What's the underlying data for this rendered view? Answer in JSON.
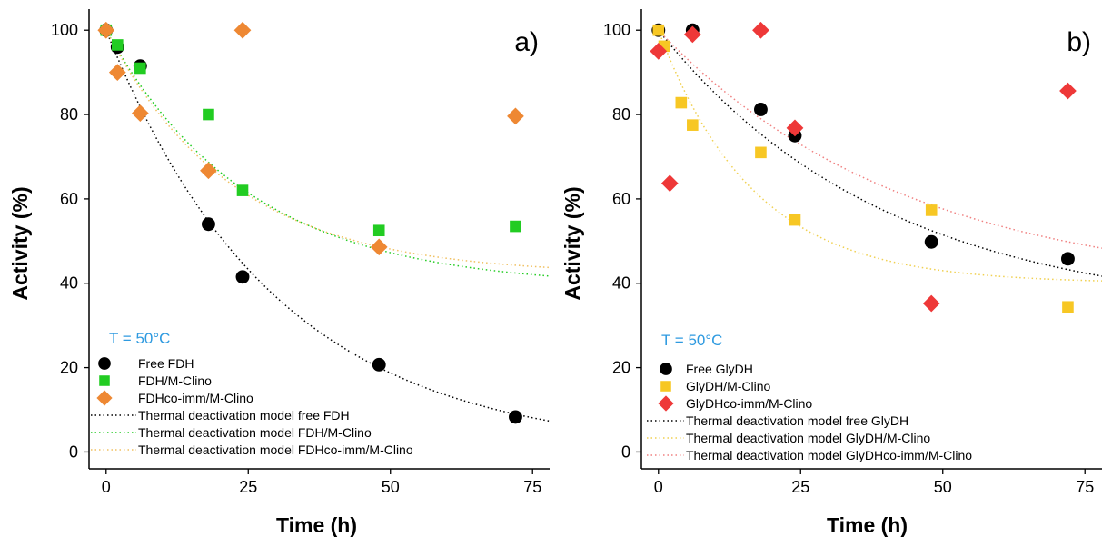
{
  "chart_data": [
    {
      "type": "scatter",
      "panel_label": "a)",
      "temperature_label": "T = 50°C",
      "xlabel": "Time (h)",
      "ylabel": "Activity (%)",
      "xlim": [
        -3,
        78
      ],
      "ylim": [
        -4,
        105
      ],
      "xticks": [
        0,
        25,
        50,
        75
      ],
      "yticks": [
        0,
        20,
        40,
        60,
        80,
        100
      ],
      "xtick_labels": [
        "0",
        "25",
        "50",
        "75"
      ],
      "ytick_labels": [
        "0",
        "20",
        "40",
        "60",
        "80",
        "100"
      ],
      "legend_position": "bottom-left",
      "series": [
        {
          "name": "Free FDH",
          "marker": "circle",
          "color": "#000000",
          "x": [
            0,
            2,
            6,
            18,
            24,
            48,
            72
          ],
          "y": [
            100,
            96,
            91.5,
            54,
            41.5,
            20.7,
            8.3
          ]
        },
        {
          "name": "FDH/M-Clino",
          "marker": "square",
          "color": "#22cc22",
          "x": [
            0,
            2,
            6,
            18,
            24,
            48,
            72
          ],
          "y": [
            100,
            96.5,
            91,
            80,
            62,
            52.5,
            53.5
          ]
        },
        {
          "name": "FDHco-imm/M-Clino",
          "marker": "diamond",
          "color": "#ee8833",
          "x": [
            0,
            2,
            6,
            18,
            24,
            48,
            72
          ],
          "y": [
            100,
            90,
            80.3,
            66.7,
            100,
            48.6,
            79.6
          ]
        }
      ],
      "models": [
        {
          "name": "Thermal deactivation model free FDH",
          "color": "#000000",
          "a": 100,
          "k": 0.0335,
          "c": 0
        },
        {
          "name": "Thermal deactivation model FDH/M-Clino",
          "color": "#22cc22",
          "a": 61,
          "k": 0.04,
          "c": 39
        },
        {
          "name": "Thermal deactivation model FDHco-imm/M-Clino",
          "color": "#f0c060",
          "a": 58,
          "k": 0.045,
          "c": 42
        }
      ]
    },
    {
      "type": "scatter",
      "panel_label": "b)",
      "temperature_label": "T = 50°C",
      "xlabel": "Time (h)",
      "ylabel": "Activity (%)",
      "xlim": [
        -3,
        78
      ],
      "ylim": [
        -4,
        105
      ],
      "xticks": [
        0,
        25,
        50,
        75
      ],
      "yticks": [
        0,
        20,
        40,
        60,
        80,
        100
      ],
      "xtick_labels": [
        "0",
        "25",
        "50",
        "75"
      ],
      "ytick_labels": [
        "0",
        "20",
        "40",
        "60",
        "80",
        "100"
      ],
      "legend_position": "bottom-left",
      "series": [
        {
          "name": "Free GlyDH",
          "marker": "circle",
          "color": "#000000",
          "x": [
            0,
            6,
            18,
            24,
            48,
            72
          ],
          "y": [
            100,
            100,
            81.2,
            75,
            49.8,
            45.8
          ]
        },
        {
          "name": "GlyDH/M-Clino",
          "marker": "square",
          "color": "#f7c724",
          "x": [
            0,
            1,
            4,
            6,
            18,
            24,
            48,
            72
          ],
          "y": [
            100,
            96.2,
            82.8,
            77.5,
            71,
            55,
            57.3,
            34.4
          ]
        },
        {
          "name": "GlyDHco-imm/M-Clino",
          "marker": "diamond",
          "color": "#ee3838",
          "x": [
            0,
            2,
            6,
            18,
            24,
            48,
            72
          ],
          "y": [
            95,
            63.7,
            99,
            100,
            76.8,
            35.2,
            85.6
          ]
        }
      ],
      "models": [
        {
          "name": "Thermal deactivation model free GlyDH",
          "color": "#000000",
          "a": 68,
          "k": 0.025,
          "c": 32
        },
        {
          "name": "Thermal deactivation model GlyDH/M-Clino",
          "color": "#f0d050",
          "a": 60,
          "k": 0.06,
          "c": 40
        },
        {
          "name": "Thermal deactivation model GlyDHco-imm/M-Clino",
          "color": "#f08080",
          "a": 62,
          "k": 0.023,
          "c": 38
        }
      ]
    }
  ]
}
